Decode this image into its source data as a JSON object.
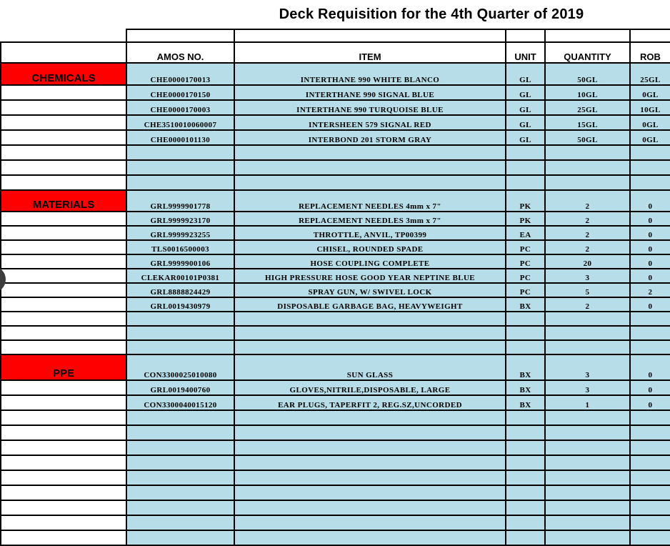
{
  "title": "Deck Requisition for the 4th Quarter of 2019",
  "colors": {
    "section_red": "#FF0000",
    "row_blue": "#B7DEE8",
    "border_black": "#000000",
    "punch_hole_gray": "#3d3d3d"
  },
  "table": {
    "headers": {
      "amos": "AMOS NO.",
      "item": "ITEM",
      "unit": "UNIT",
      "quantity": "QUANTITY",
      "rob": "ROB"
    },
    "sections": [
      {
        "name": "CHEMICALS",
        "empty_rows_after": 3,
        "rows": [
          {
            "amos": "CHE0000170013",
            "item": "INTERTHANE 990 WHITE BLANCO",
            "unit": "GL",
            "quantity": "50GL",
            "rob": "25GL"
          },
          {
            "amos": "CHE0000170150",
            "item": "INTERTHANE 990 SIGNAL BLUE",
            "unit": "GL",
            "quantity": "10GL",
            "rob": "0GL"
          },
          {
            "amos": "CHE0000170003",
            "item": "INTERTHANE 990 TURQUOISE BLUE",
            "unit": "GL",
            "quantity": "25GL",
            "rob": "10GL"
          },
          {
            "amos": "CHE3510010060007",
            "item": "INTERSHEEN 579 SIGNAL RED",
            "unit": "GL",
            "quantity": "15GL",
            "rob": "0GL"
          },
          {
            "amos": "CHE0000101130",
            "item": "INTERBOND 201 STORM GRAY",
            "unit": "GL",
            "quantity": "50GL",
            "rob": "0GL"
          }
        ]
      },
      {
        "name": "MATERIALS",
        "empty_rows_after": 3,
        "rows": [
          {
            "amos": "GRL9999901778",
            "item": "REPLACEMENT NEEDLES 4mm x 7\"",
            "unit": "PK",
            "quantity": "2",
            "rob": "0"
          },
          {
            "amos": "GRL9999923170",
            "item": "REPLACEMENT NEEDLES 3mm x 7\"",
            "unit": "PK",
            "quantity": "2",
            "rob": "0"
          },
          {
            "amos": "GRL9999923255",
            "item": "THROTTLE, ANVIL, TP00399",
            "unit": "EA",
            "quantity": "2",
            "rob": "0"
          },
          {
            "amos": "TLS0016500003",
            "item": "CHISEL, ROUNDED SPADE",
            "unit": "PC",
            "quantity": "2",
            "rob": "0"
          },
          {
            "amos": "GRL9999900106",
            "item": "HOSE COUPLING COMPLETE",
            "unit": "PC",
            "quantity": "20",
            "rob": "0"
          },
          {
            "amos": "CLEKAR00101P0381",
            "item": "HIGH PRESSURE HOSE GOOD YEAR NEPTINE BLUE",
            "unit": "PC",
            "quantity": "3",
            "rob": "0"
          },
          {
            "amos": "GRL8888824429",
            "item": "SPRAY GUN, W/ SWIVEL LOCK",
            "unit": "PC",
            "quantity": "5",
            "rob": "2"
          },
          {
            "amos": "GRL0019430979",
            "item": "DISPOSABLE GARBAGE BAG, HEAVYWEIGHT",
            "unit": "BX",
            "quantity": "2",
            "rob": "0"
          }
        ]
      },
      {
        "name": "PPE",
        "empty_rows_after": 9,
        "rows": [
          {
            "amos": "CON3300025010080",
            "item": "SUN GLASS",
            "unit": "BX",
            "quantity": "3",
            "rob": "0"
          },
          {
            "amos": "GRL0019400760",
            "item": "GLOVES,NITRILE,DISPOSABLE, LARGE",
            "unit": "BX",
            "quantity": "3",
            "rob": "0"
          },
          {
            "amos": "CON3300040015120",
            "item": "EAR PLUGS, TAPERFIT 2, REG.SZ,UNCORDED",
            "unit": "BX",
            "quantity": "1",
            "rob": "0"
          }
        ]
      }
    ]
  }
}
